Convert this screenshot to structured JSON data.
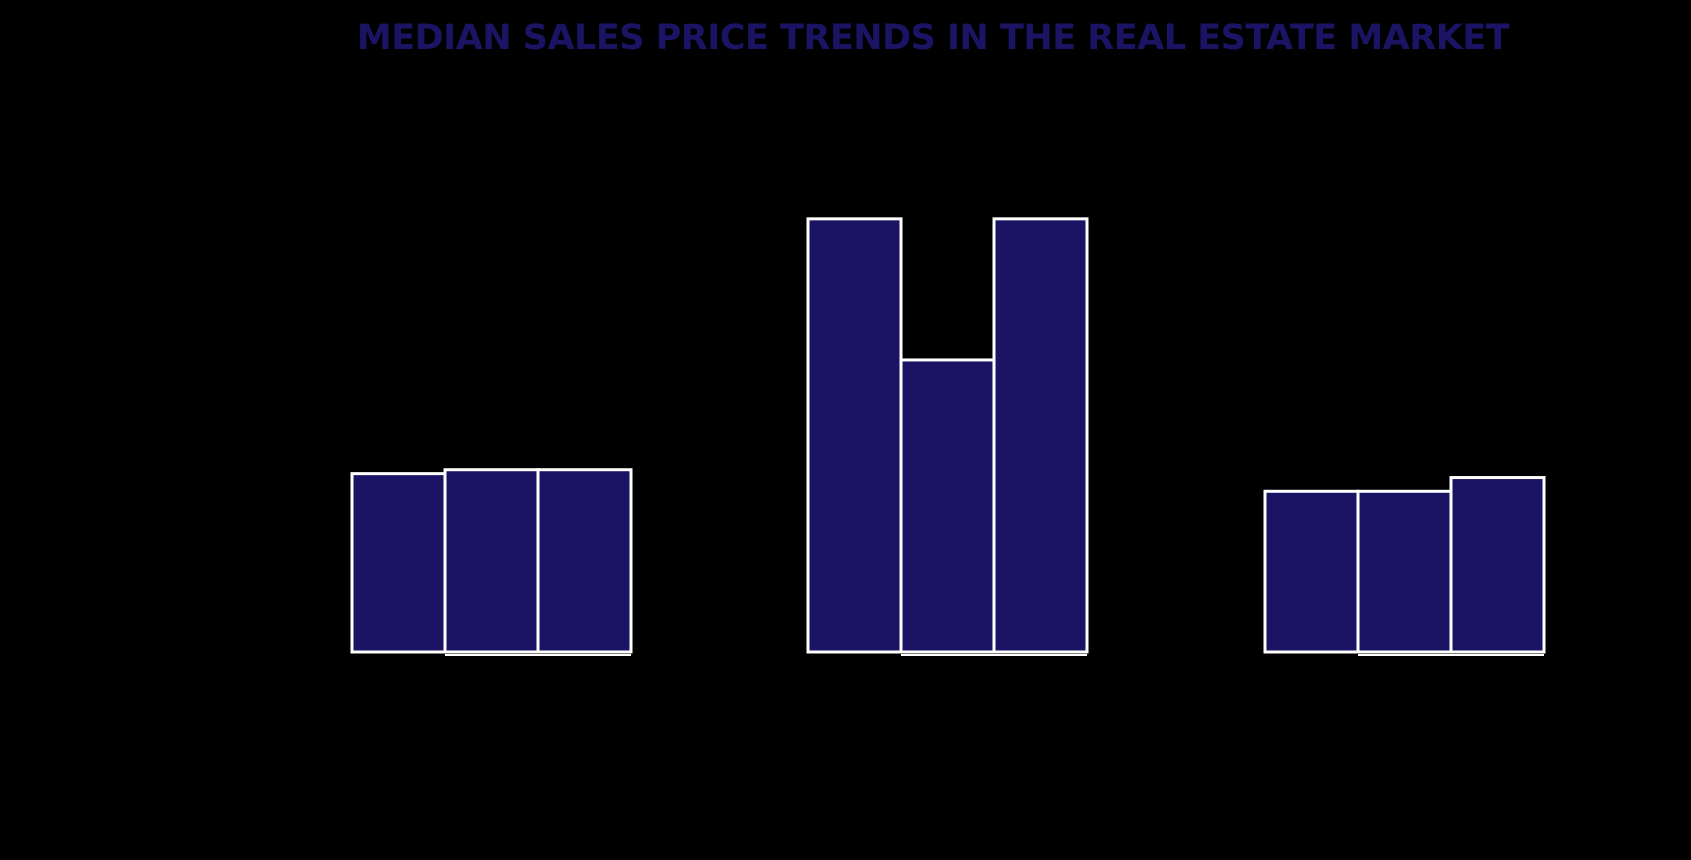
{
  "chart_data": {
    "type": "bar",
    "title": "MEDIAN SALES PRICE TRENDS IN THE REAL ESTATE MARKET",
    "xlabel": "",
    "ylabel": "",
    "grid": false,
    "categories": [
      "",
      "",
      ""
    ],
    "series": [
      {
        "values": [
          91,
          221,
          82
        ]
      },
      {
        "values": [
          93,
          149,
          82
        ]
      },
      {
        "values": [
          93,
          221,
          89
        ]
      }
    ],
    "ylim": [
      0,
      250
    ],
    "colors": {
      "bar_fill": "#1b1464",
      "bar_stroke": "#ffffff",
      "title": "#1b1464",
      "background": "#000000"
    }
  }
}
